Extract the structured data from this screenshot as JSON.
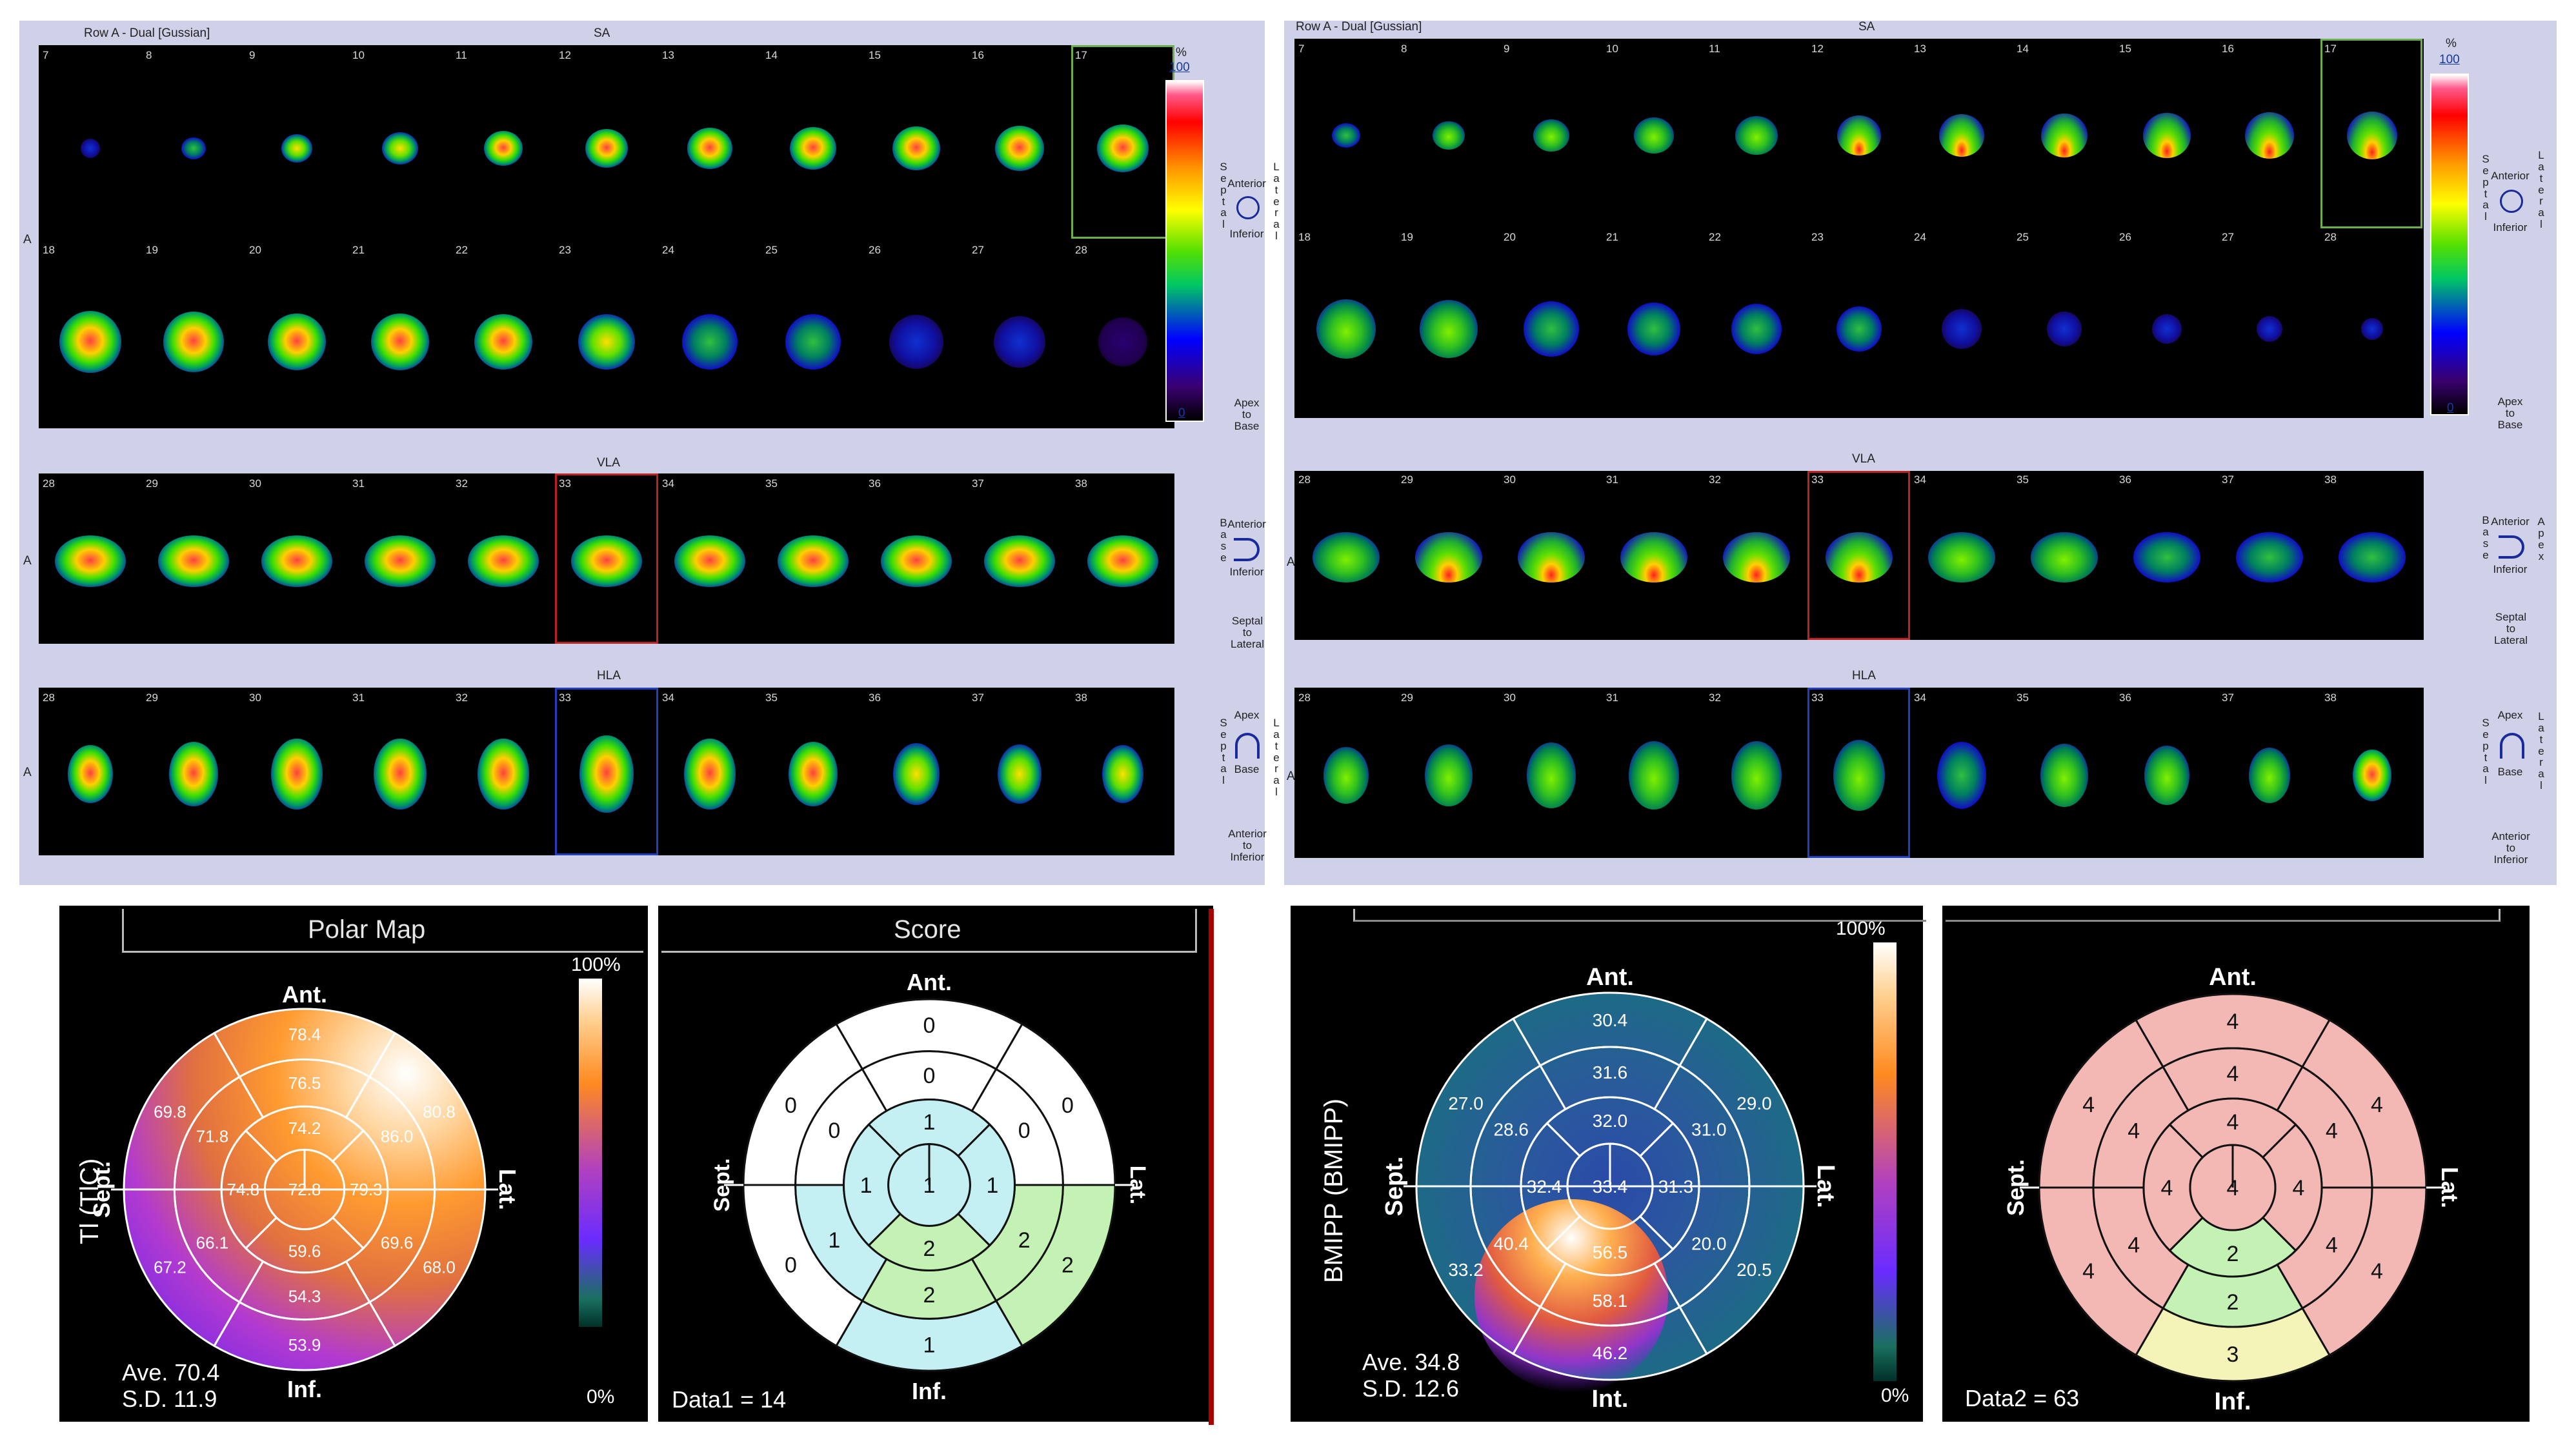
{
  "left_panel": {
    "header": "Row A - Dual [Gussian]",
    "sa_label": "SA",
    "vla_label": "VLA",
    "hla_label": "HLA",
    "row_label": "A",
    "sa_top_nums": [
      "7",
      "8",
      "9",
      "10",
      "11",
      "12",
      "13",
      "14",
      "15",
      "16",
      "17"
    ],
    "sa_bottom_nums": [
      "18",
      "19",
      "20",
      "21",
      "22",
      "23",
      "24",
      "25",
      "26",
      "27",
      "28"
    ],
    "vla_nums": [
      "28",
      "29",
      "30",
      "31",
      "32",
      "33",
      "34",
      "35",
      "36",
      "37",
      "38"
    ],
    "hla_nums": [
      "28",
      "29",
      "30",
      "31",
      "32",
      "33",
      "34",
      "35",
      "36",
      "37",
      "38"
    ]
  },
  "right_panel": {
    "header": "Row A - Dual [Gussian]",
    "sa_label": "SA",
    "vla_label": "VLA",
    "hla_label": "HLA",
    "row_label": "A",
    "sa_top_nums": [
      "7",
      "8",
      "9",
      "10",
      "11",
      "12",
      "13",
      "14",
      "15",
      "16",
      "17"
    ],
    "sa_bottom_nums": [
      "18",
      "19",
      "20",
      "21",
      "22",
      "23",
      "24",
      "25",
      "26",
      "27",
      "28"
    ],
    "vla_nums": [
      "28",
      "29",
      "30",
      "31",
      "32",
      "33",
      "34",
      "35",
      "36",
      "37",
      "38"
    ],
    "hla_nums": [
      "28",
      "29",
      "30",
      "31",
      "32",
      "33",
      "34",
      "35",
      "36",
      "37",
      "38"
    ]
  },
  "colorbar": {
    "unit": "%",
    "max": "100",
    "min": "0"
  },
  "orientation": {
    "anterior": "Anterior",
    "inferior": "Inferior",
    "septal": "Septal",
    "lateral": "Lateral",
    "base": "Base",
    "apex": "Apex",
    "apex_to_base": "Apex to Base",
    "septal_to_lateral": "Septal to Lateral",
    "anterior_to_inferior": "Anterior to Inferior",
    "apex_word": "Apex",
    "to_word": "to",
    "base_word": "Base",
    "septal_word": "Septal",
    "lateral_word": "Lateral",
    "anterior_word": "Anterior",
    "inferior_word": "Inferior"
  },
  "polar_tl": {
    "title": "Polar Map",
    "side_label": "Tl (TlC)",
    "ant": "Ant.",
    "inf": "Inf.",
    "sept": "Sept.",
    "lat": "Lat.",
    "pct_top": "100%",
    "pct_bottom": "0%",
    "ave": "Ave. 70.4",
    "sd": "S.D. 11.9",
    "values": {
      "a_out": "78.4",
      "a_mid": "76.5",
      "a_in": "74.2",
      "al_out": "80.8",
      "al_mid": "86.0",
      "as_out": "69.8",
      "as_mid": "71.8",
      "s_in": "74.8",
      "apex": "72.8",
      "l_in": "79.3",
      "is_mid": "66.1",
      "is_out": "67.2",
      "il_mid": "69.6",
      "il_out": "68.0",
      "i_in": "59.6",
      "i_mid": "54.3",
      "i_out": "53.9"
    }
  },
  "score_tl": {
    "title": "Score",
    "ant": "Ant.",
    "inf": "Inf.",
    "sept": "Sept.",
    "lat": "Lat.",
    "data": "Data1 = 14",
    "values": {
      "a_out": "0",
      "a_mid": "0",
      "a_in": "1",
      "as_out": "0",
      "as_mid": "0",
      "al_out": "0",
      "al_mid": "0",
      "s_in": "1",
      "apex": "1",
      "l_in": "1",
      "is_out": "0",
      "is_mid": "1",
      "il_out": "2",
      "il_mid": "2",
      "i_in": "2",
      "i_mid": "2",
      "i_out": "1"
    }
  },
  "polar_bmipp": {
    "side_label": "BMIPP (BMIPP)",
    "ant": "Ant.",
    "inf": "Int.",
    "sept": "Sept.",
    "lat": "Lat.",
    "pct_top": "100%",
    "pct_bottom": "0%",
    "ave": "Ave. 34.8",
    "sd": "S.D. 12.6",
    "values": {
      "a_out": "30.4",
      "a_mid": "31.6",
      "a_in": "32.0",
      "as_out": "27.0",
      "as_mid": "28.6",
      "al_out": "29.0",
      "al_mid": "31.0",
      "s_in": "32.4",
      "apex": "33.4",
      "l_in": "31.3",
      "is_mid": "40.4",
      "is_out": "33.2",
      "il_mid": "20.0",
      "il_out": "20.5",
      "i_in": "56.5",
      "i_mid": "58.1",
      "i_out": "46.2"
    }
  },
  "score_bmipp": {
    "ant": "Ant.",
    "inf": "Inf.",
    "sept": "Sept.",
    "lat": "Lat.",
    "data": "Data2 = 63",
    "values": {
      "a_out": "4",
      "a_mid": "4",
      "a_in": "4",
      "as_out": "4",
      "as_mid": "4",
      "al_out": "4",
      "al_mid": "4",
      "s_in": "4",
      "apex": "4",
      "l_in": "4",
      "is_out": "4",
      "is_mid": "4",
      "il_out": "4",
      "il_mid": "4",
      "i_in": "2",
      "i_mid": "2",
      "i_out": "3"
    }
  },
  "colors": {
    "panel_bg": "#cfd1e9",
    "score_white": "#ffffff",
    "score_cyan": "#c4f0f4",
    "score_green": "#c4f1b4",
    "score_pink": "#f4b8b4",
    "score_yellow": "#f4f4b8"
  }
}
